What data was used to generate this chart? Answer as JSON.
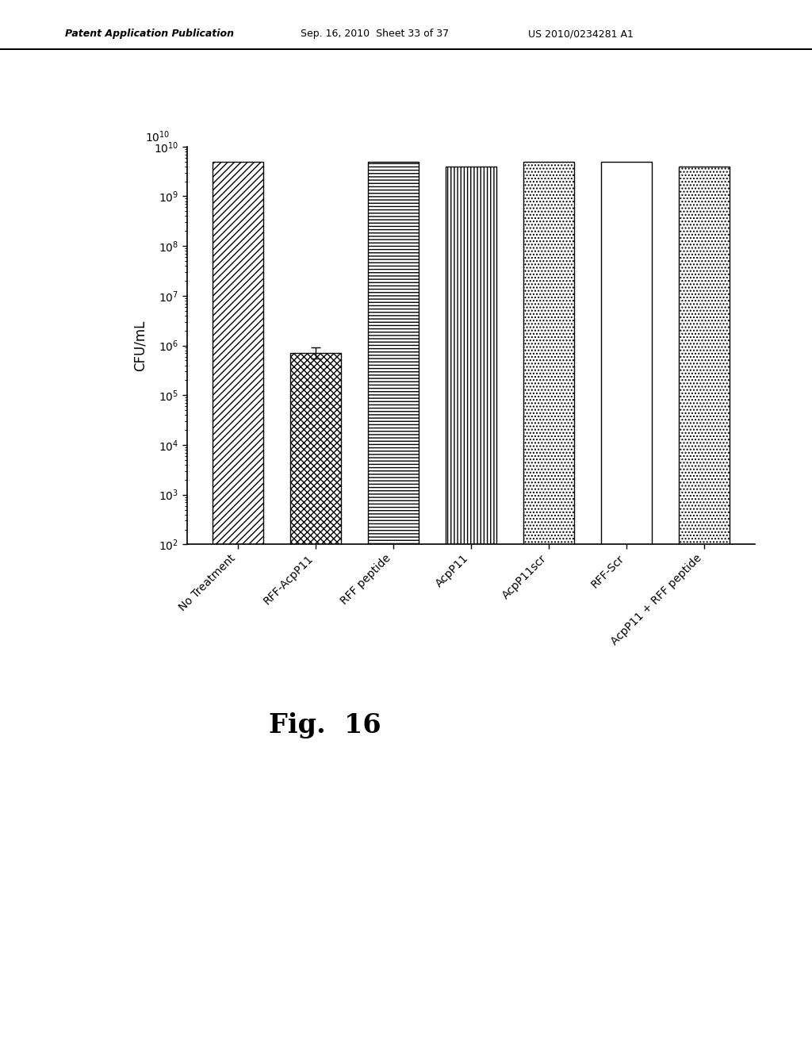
{
  "categories": [
    "No Treatment",
    "RFF-AcpP11",
    "RFF peptide",
    "AcpP11",
    "AcpP11scr",
    "RFF-Scr",
    "AcpP11 + RFF peptide"
  ],
  "values": [
    5000000000.0,
    700000.0,
    5000000000.0,
    4000000000.0,
    5000000000.0,
    5000000000.0,
    4000000000.0
  ],
  "error_low": [
    0,
    150000.0,
    0,
    0,
    0,
    0,
    0
  ],
  "error_high": [
    0,
    200000.0,
    0,
    0,
    0,
    0,
    0
  ],
  "hatch_patterns": [
    "////",
    "xxx",
    "---",
    "|||",
    "....",
    "",
    "...."
  ],
  "ylabel": "CFU/mL",
  "figure_label": "Fig.  16",
  "header_left": "Patent Application Publication",
  "header_mid": "Sep. 16, 2010  Sheet 33 of 37",
  "header_right": "US 2010/0234281 A1",
  "background_color": "#ffffff",
  "bar_width": 0.65
}
